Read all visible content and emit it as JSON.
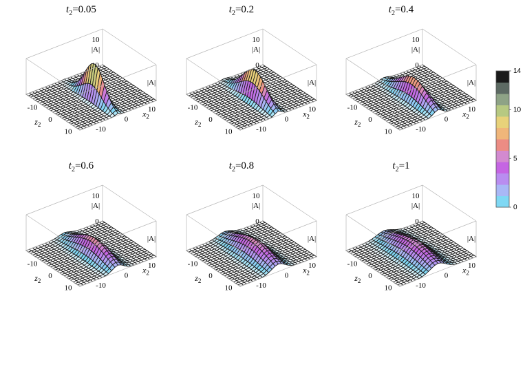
{
  "chart_data": [
    {
      "type": "surface",
      "title": "0.05",
      "peak": 14,
      "width": 1.0,
      "spread": 0.0
    },
    {
      "type": "surface",
      "title": "0.2",
      "peak": 11.5,
      "width": 1.3,
      "spread": 0.2
    },
    {
      "type": "surface",
      "title": "0.4",
      "peak": 8.5,
      "width": 1.7,
      "spread": 0.4
    },
    {
      "type": "surface",
      "title": "0.6",
      "peak": 7.0,
      "width": 2.2,
      "spread": 0.6
    },
    {
      "type": "surface",
      "title": "0.8",
      "peak": 6.5,
      "width": 2.6,
      "spread": 0.8
    },
    {
      "type": "surface",
      "title": "1",
      "peak": 6.0,
      "width": 3.0,
      "spread": 1.0
    }
  ],
  "title_var": "t",
  "title_sub": "2",
  "axes": {
    "z_label": "z",
    "z_sub": "2",
    "x_label": "x",
    "x_sub": "2",
    "value_label": "|A|",
    "z_ticks": [
      "-10",
      "0",
      "10"
    ],
    "x_ticks": [
      "10",
      "0",
      "-10"
    ],
    "value_ticks": [
      "0",
      "10"
    ],
    "zlim": [
      -15,
      15
    ],
    "xlim": [
      -15,
      15
    ],
    "value_lim": [
      0,
      14
    ]
  },
  "colorbar": {
    "ticks": [
      "0",
      "5",
      "10",
      "14"
    ],
    "range": [
      0,
      14
    ],
    "colors": [
      "#ffffff",
      "#7fd8f4",
      "#a9b8f6",
      "#b98df0",
      "#c565e3",
      "#d38ad0",
      "#ec8c84",
      "#f0b67a",
      "#e8d27a",
      "#b7c982",
      "#8ea386",
      "#5d6a63",
      "#1a1a1a"
    ]
  }
}
